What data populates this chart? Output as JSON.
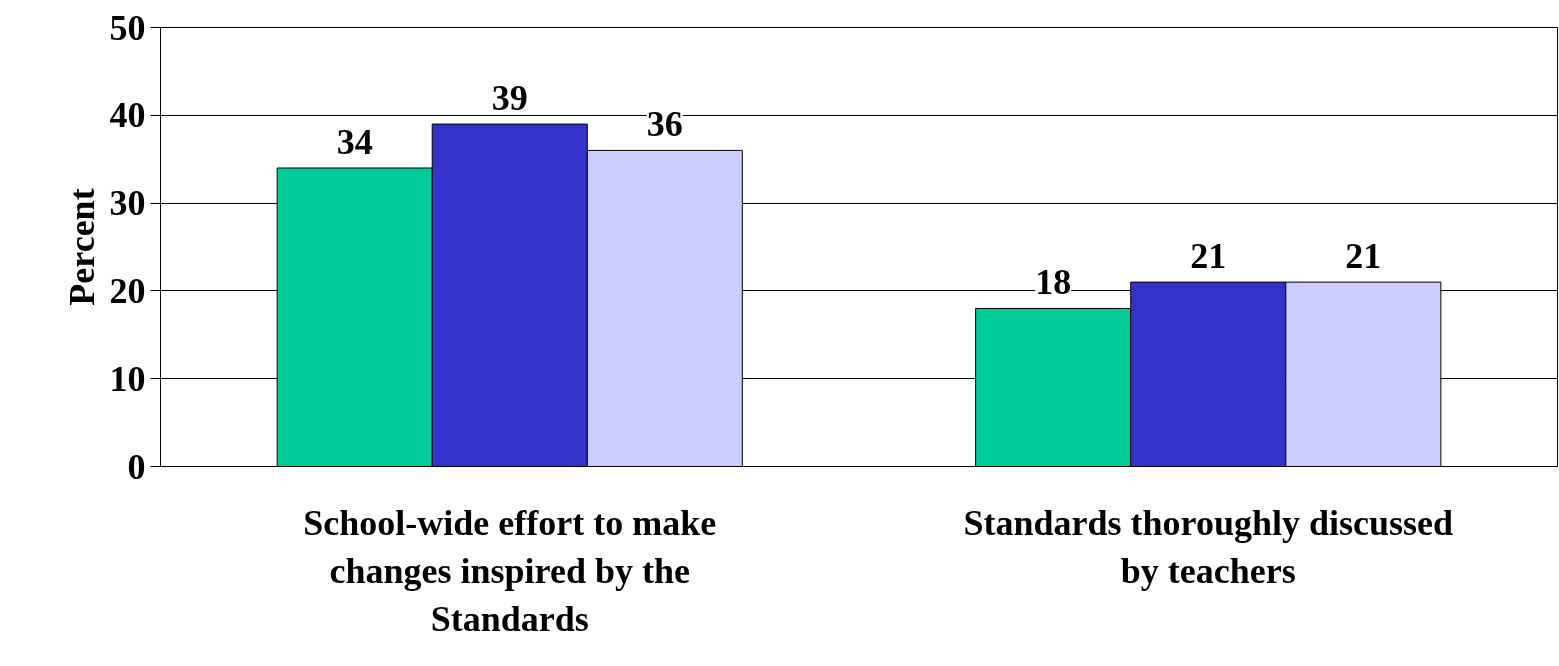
{
  "chart_data": {
    "type": "bar",
    "ylabel": "Percent",
    "categories": [
      "School-wide effort to make changes inspired by the Standards",
      "Standards thoroughly discussed by teachers"
    ],
    "series": [
      {
        "color": "#00cc99",
        "values": [
          34,
          18
        ]
      },
      {
        "color": "#3333cc",
        "values": [
          39,
          21
        ]
      },
      {
        "color": "#ccccff",
        "values": [
          36,
          21
        ]
      }
    ],
    "ylim": [
      0,
      50
    ],
    "yticks": [
      0,
      10,
      20,
      30,
      40,
      50
    ],
    "grid": "y",
    "data_labels": true
  }
}
